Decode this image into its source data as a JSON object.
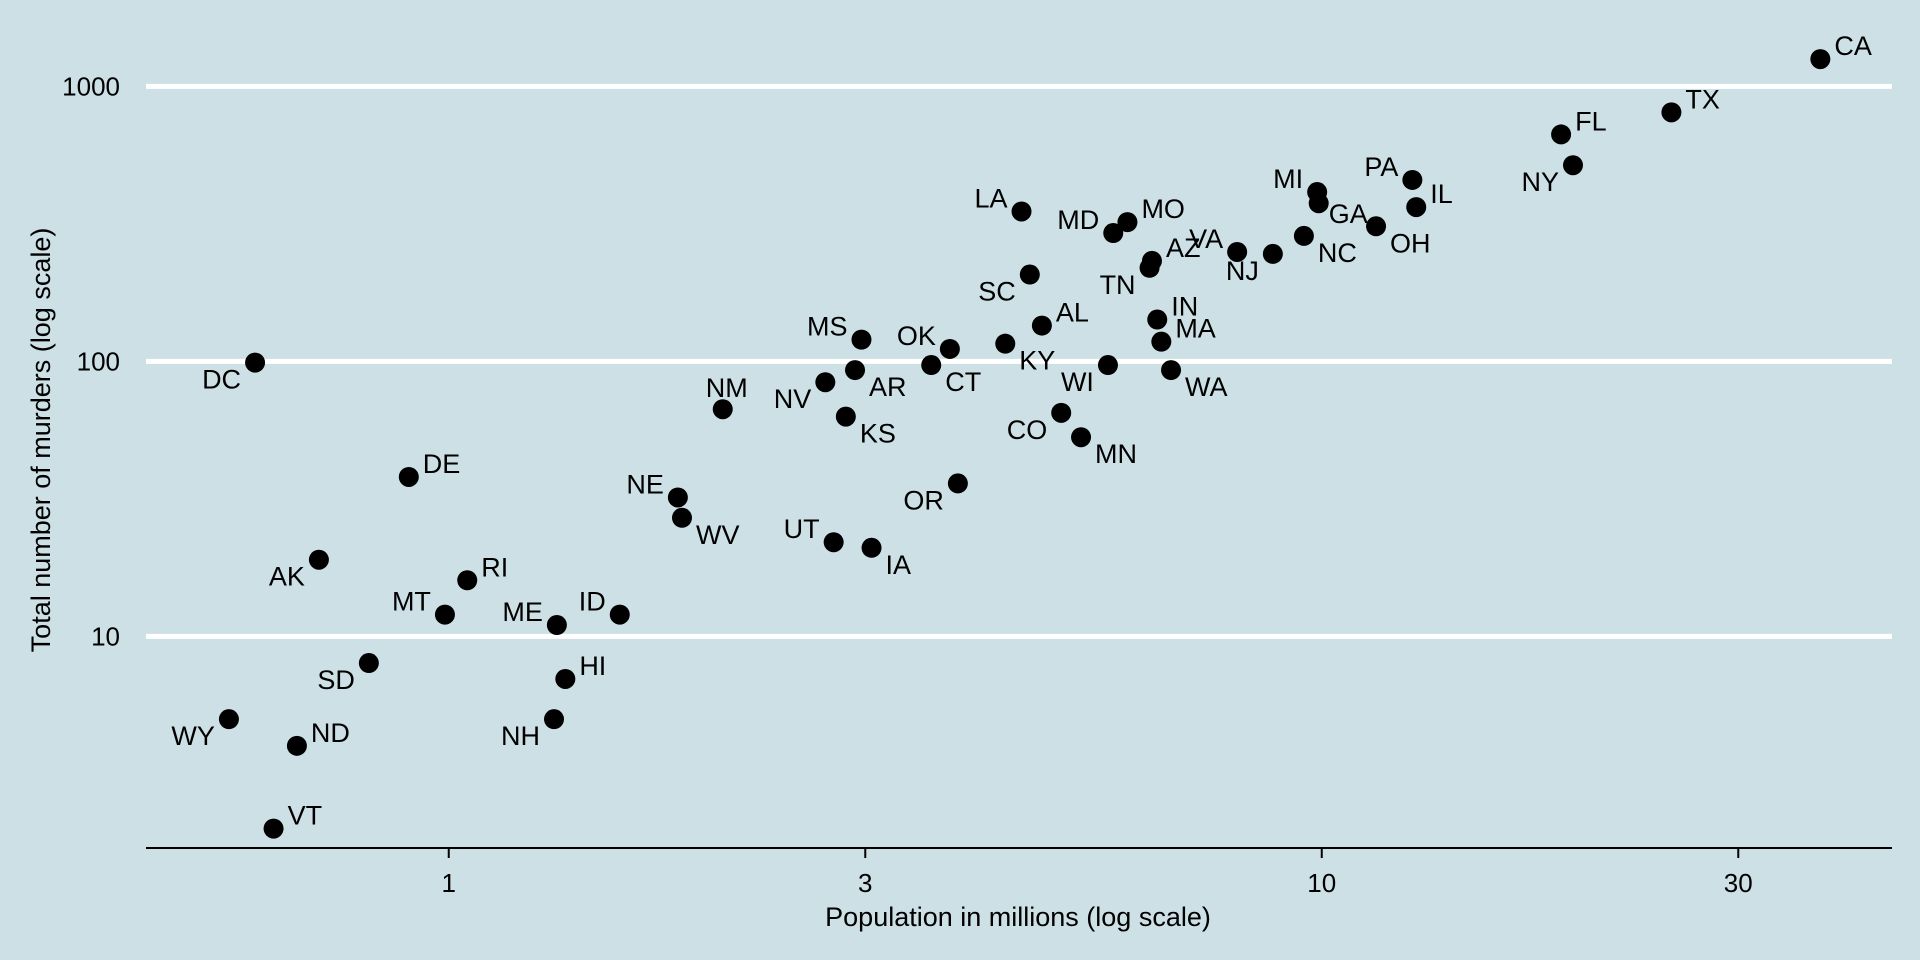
{
  "chart_data": {
    "type": "scatter",
    "title": "",
    "xlabel": "Population in millions (log scale)",
    "ylabel": "Total number of murders (log scale)",
    "x_scale": "log10",
    "y_scale": "log10",
    "xlim": [
      0.45,
      45
    ],
    "ylim": [
      1.7,
      1500
    ],
    "x_ticks": [
      1,
      3,
      10,
      30
    ],
    "y_ticks": [
      10,
      100,
      1000
    ],
    "grid": "horizontal",
    "legend": "none",
    "colors": {
      "background": "#cde0e6",
      "point": "#000000",
      "grid": "#ffffff",
      "axis": "#000000"
    },
    "points": [
      {
        "label": "CA",
        "x": 37.25,
        "y": 1257
      },
      {
        "label": "TX",
        "x": 25.15,
        "y": 805
      },
      {
        "label": "FL",
        "x": 18.8,
        "y": 669
      },
      {
        "label": "NY",
        "x": 19.4,
        "y": 517
      },
      {
        "label": "PA",
        "x": 12.7,
        "y": 457
      },
      {
        "label": "IL",
        "x": 12.83,
        "y": 364
      },
      {
        "label": "MI",
        "x": 9.88,
        "y": 413
      },
      {
        "label": "GA",
        "x": 9.92,
        "y": 376
      },
      {
        "label": "OH",
        "x": 11.54,
        "y": 310
      },
      {
        "label": "NC",
        "x": 9.54,
        "y": 286
      },
      {
        "label": "VA",
        "x": 8.0,
        "y": 250
      },
      {
        "label": "NJ",
        "x": 8.79,
        "y": 246
      },
      {
        "label": "LA",
        "x": 4.53,
        "y": 351
      },
      {
        "label": "MO",
        "x": 5.99,
        "y": 321
      },
      {
        "label": "MD",
        "x": 5.77,
        "y": 293
      },
      {
        "label": "AZ",
        "x": 6.39,
        "y": 232
      },
      {
        "label": "TN",
        "x": 6.35,
        "y": 219
      },
      {
        "label": "SC",
        "x": 4.63,
        "y": 207
      },
      {
        "label": "IN",
        "x": 6.48,
        "y": 142
      },
      {
        "label": "AL",
        "x": 4.78,
        "y": 135
      },
      {
        "label": "MA",
        "x": 6.55,
        "y": 118
      },
      {
        "label": "KY",
        "x": 4.34,
        "y": 116
      },
      {
        "label": "WA",
        "x": 6.72,
        "y": 93
      },
      {
        "label": "WI",
        "x": 5.69,
        "y": 97
      },
      {
        "label": "CO",
        "x": 5.03,
        "y": 65
      },
      {
        "label": "MN",
        "x": 5.3,
        "y": 53
      },
      {
        "label": "OK",
        "x": 3.75,
        "y": 111
      },
      {
        "label": "CT",
        "x": 3.57,
        "y": 97
      },
      {
        "label": "MS",
        "x": 2.97,
        "y": 120
      },
      {
        "label": "AR",
        "x": 2.92,
        "y": 93
      },
      {
        "label": "NV",
        "x": 2.7,
        "y": 84
      },
      {
        "label": "KS",
        "x": 2.85,
        "y": 63
      },
      {
        "label": "NM",
        "x": 2.06,
        "y": 67
      },
      {
        "label": "OR",
        "x": 3.83,
        "y": 36
      },
      {
        "label": "UT",
        "x": 2.76,
        "y": 22
      },
      {
        "label": "IA",
        "x": 3.05,
        "y": 21
      },
      {
        "label": "NE",
        "x": 1.83,
        "y": 32
      },
      {
        "label": "WV",
        "x": 1.85,
        "y": 27
      },
      {
        "label": "DC",
        "x": 0.6,
        "y": 99
      },
      {
        "label": "DE",
        "x": 0.9,
        "y": 38
      },
      {
        "label": "AK",
        "x": 0.71,
        "y": 19
      },
      {
        "label": "RI",
        "x": 1.05,
        "y": 16
      },
      {
        "label": "MT",
        "x": 0.99,
        "y": 12
      },
      {
        "label": "ME",
        "x": 1.33,
        "y": 11
      },
      {
        "label": "ID",
        "x": 1.57,
        "y": 12
      },
      {
        "label": "HI",
        "x": 1.36,
        "y": 7
      },
      {
        "label": "NH",
        "x": 1.32,
        "y": 5
      },
      {
        "label": "SD",
        "x": 0.81,
        "y": 8
      },
      {
        "label": "WY",
        "x": 0.56,
        "y": 5
      },
      {
        "label": "ND",
        "x": 0.67,
        "y": 4
      },
      {
        "label": "VT",
        "x": 0.63,
        "y": 2
      }
    ]
  }
}
